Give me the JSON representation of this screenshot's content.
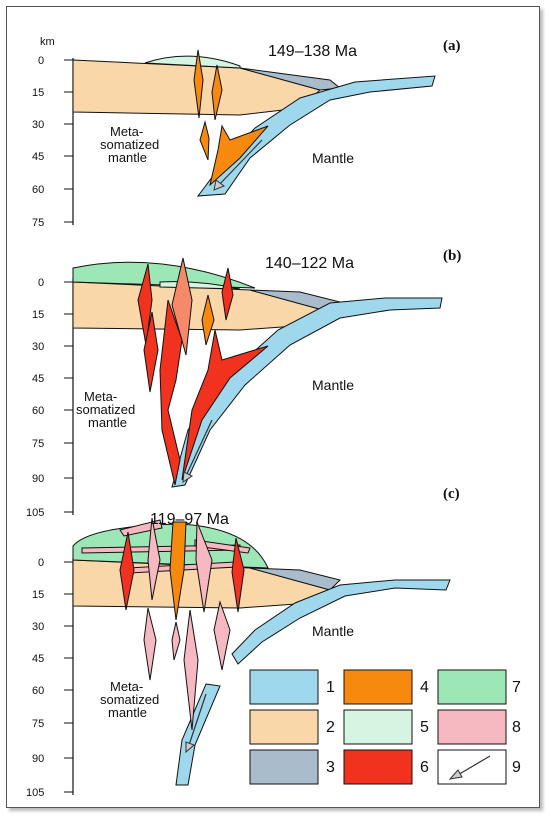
{
  "colors": {
    "c1": "#9fd8ec",
    "c2": "#f9d7a8",
    "c3": "#a9bccb",
    "c4": "#f7890f",
    "c5": "#d6f4e2",
    "c6": "#f0321e",
    "c7": "#9de6b5",
    "c8": "#f7b9c1"
  },
  "depth_unit": "km",
  "panels": [
    {
      "letter": "(a)",
      "age": "149–138 Ma",
      "ticks": [
        "0",
        "15",
        "30",
        "45",
        "60",
        "75"
      ],
      "meta_line1": "Meta-",
      "meta_line2": "somatized",
      "meta_line3": "mantle",
      "mantle": "Mantle"
    },
    {
      "letter": "(b)",
      "age": "140–122 Ma",
      "ticks": [
        "0",
        "15",
        "30",
        "45",
        "60",
        "75",
        "90",
        "105"
      ],
      "meta_line1": "Meta-",
      "meta_line2": "somatized",
      "meta_line3": "mantle",
      "mantle": "Mantle"
    },
    {
      "letter": "(c)",
      "age": "119–97 Ma",
      "ticks": [
        "0",
        "15",
        "30",
        "45",
        "60",
        "75",
        "90",
        "105"
      ],
      "meta_line1": "Meta-",
      "meta_line2": "somatized",
      "meta_line3": "mantle",
      "mantle": "Mantle"
    }
  ],
  "legend": [
    "1",
    "2",
    "3",
    "4",
    "5",
    "6",
    "7",
    "8",
    "9"
  ]
}
